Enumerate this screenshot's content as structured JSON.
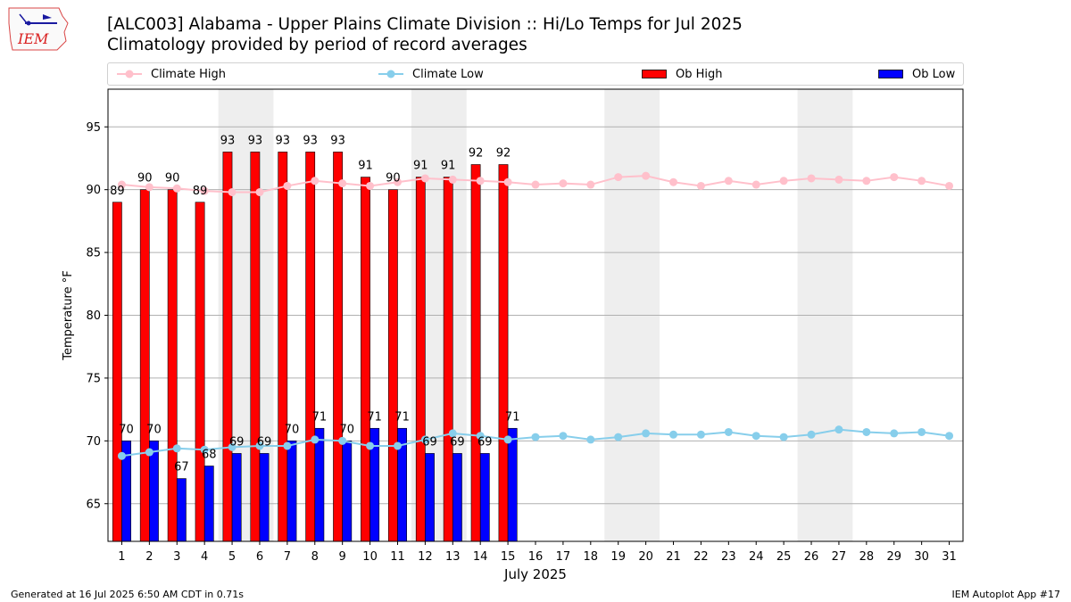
{
  "header": {
    "title": "[ALC003] Alabama - Upper Plains Climate Division :: Hi/Lo Temps for Jul 2025",
    "subtitle": "Climatology provided by period of record averages",
    "logo_text": "IEM"
  },
  "footer": {
    "left": "Generated at 16 Jul 2025 6:50 AM CDT in 0.71s",
    "right": "IEM Autoplot App #17"
  },
  "colors": {
    "climate_high": "#ffc0cb",
    "climate_low": "#87ceeb",
    "ob_high": "#ff0000",
    "ob_low": "#0000ff",
    "weekend": "#eeeeee",
    "grid": "#b0b0b0"
  },
  "chart_data": {
    "type": "bar",
    "title": "[ALC003] Alabama - Upper Plains Climate Division :: Hi/Lo Temps for Jul 2025",
    "subtitle": "Climatology provided by period of record averages",
    "xlabel": "July 2025",
    "ylabel": "Temperature °F",
    "xlim": [
      0.5,
      31.5
    ],
    "ylim": [
      62,
      98
    ],
    "yticks": [
      65,
      70,
      75,
      80,
      85,
      90,
      95
    ],
    "grid": true,
    "legend_position": "top",
    "days": [
      1,
      2,
      3,
      4,
      5,
      6,
      7,
      8,
      9,
      10,
      11,
      12,
      13,
      14,
      15,
      16,
      17,
      18,
      19,
      20,
      21,
      22,
      23,
      24,
      25,
      26,
      27,
      28,
      29,
      30,
      31
    ],
    "weekend_spans": [
      [
        5,
        6
      ],
      [
        12,
        13
      ],
      [
        19,
        20
      ],
      [
        26,
        27
      ]
    ],
    "series": [
      {
        "name": "Climate High",
        "kind": "line",
        "values": [
          90.4,
          90.2,
          90.1,
          89.9,
          89.8,
          89.8,
          90.3,
          90.7,
          90.5,
          90.3,
          90.6,
          90.9,
          90.8,
          90.7,
          90.6,
          90.4,
          90.5,
          90.4,
          91.0,
          91.1,
          90.6,
          90.3,
          90.7,
          90.4,
          90.7,
          90.9,
          90.8,
          90.7,
          91.0,
          90.7,
          90.3
        ]
      },
      {
        "name": "Climate Low",
        "kind": "line",
        "values": [
          68.8,
          69.1,
          69.4,
          69.3,
          69.5,
          69.6,
          69.6,
          70.1,
          70.0,
          69.6,
          69.6,
          70.1,
          70.6,
          70.4,
          70.1,
          70.3,
          70.4,
          70.1,
          70.3,
          70.6,
          70.5,
          70.5,
          70.7,
          70.4,
          70.3,
          70.5,
          70.9,
          70.7,
          70.6,
          70.7,
          70.4
        ]
      },
      {
        "name": "Ob High",
        "kind": "bar",
        "values": [
          89,
          90,
          90,
          89,
          93,
          93,
          93,
          93,
          93,
          91,
          90,
          91,
          91,
          92,
          92
        ]
      },
      {
        "name": "Ob Low",
        "kind": "bar",
        "values": [
          70,
          70,
          67,
          68,
          69,
          69,
          70,
          71,
          70,
          71,
          71,
          69,
          69,
          69,
          71
        ]
      }
    ]
  }
}
